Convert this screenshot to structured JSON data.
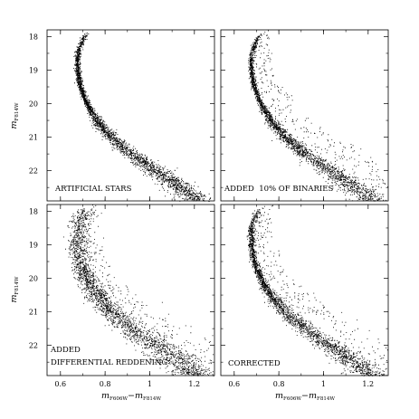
{
  "chart_data": {
    "type": "scatter",
    "panels": [
      {
        "label_lines": [
          "ARTIFICIAL STARS"
        ],
        "spread": "narrow",
        "binaries": 0,
        "corrected": false
      },
      {
        "label_lines": [
          "ADDED  10% OF BINARIES"
        ],
        "spread": "narrow",
        "binaries": 0.1,
        "corrected": false
      },
      {
        "label_lines": [
          "ADDED",
          "DIFFERENTIAL REDDENING"
        ],
        "spread": "wide",
        "binaries": 0.1,
        "corrected": false
      },
      {
        "label_lines": [
          "CORRECTED"
        ],
        "spread": "narrow",
        "binaries": 0.1,
        "corrected": true
      }
    ],
    "xlim": [
      0.54,
      1.29
    ],
    "ylim": [
      22.9,
      17.8
    ],
    "x_ticks": [
      0.6,
      0.8,
      1,
      1.2
    ],
    "x_tick_labels": [
      "0.6",
      "0.8",
      "1",
      "1.2"
    ],
    "y_ticks": [
      18,
      19,
      20,
      21,
      22
    ],
    "y_tick_labels": [
      "18",
      "19",
      "20",
      "21",
      "22"
    ],
    "xlabel": {
      "m1": "m",
      "sub1": "F606W",
      "dash": "−",
      "m2": "m",
      "sub2": "F814W"
    },
    "ylabel": {
      "m": "m",
      "sub": "F814W"
    },
    "main_sequence_ridge": [
      {
        "y": 17.8,
        "x": 0.735
      },
      {
        "y": 18.0,
        "x": 0.705
      },
      {
        "y": 18.3,
        "x": 0.685
      },
      {
        "y": 18.6,
        "x": 0.675
      },
      {
        "y": 19.0,
        "x": 0.676
      },
      {
        "y": 19.4,
        "x": 0.685
      },
      {
        "y": 19.8,
        "x": 0.705
      },
      {
        "y": 20.2,
        "x": 0.735
      },
      {
        "y": 20.6,
        "x": 0.775
      },
      {
        "y": 21.0,
        "x": 0.83
      },
      {
        "y": 21.4,
        "x": 0.9
      },
      {
        "y": 21.8,
        "x": 0.985
      },
      {
        "y": 22.2,
        "x": 1.075
      },
      {
        "y": 22.6,
        "x": 1.16
      },
      {
        "y": 22.9,
        "x": 1.215
      }
    ],
    "grid": false,
    "legend": "none"
  }
}
